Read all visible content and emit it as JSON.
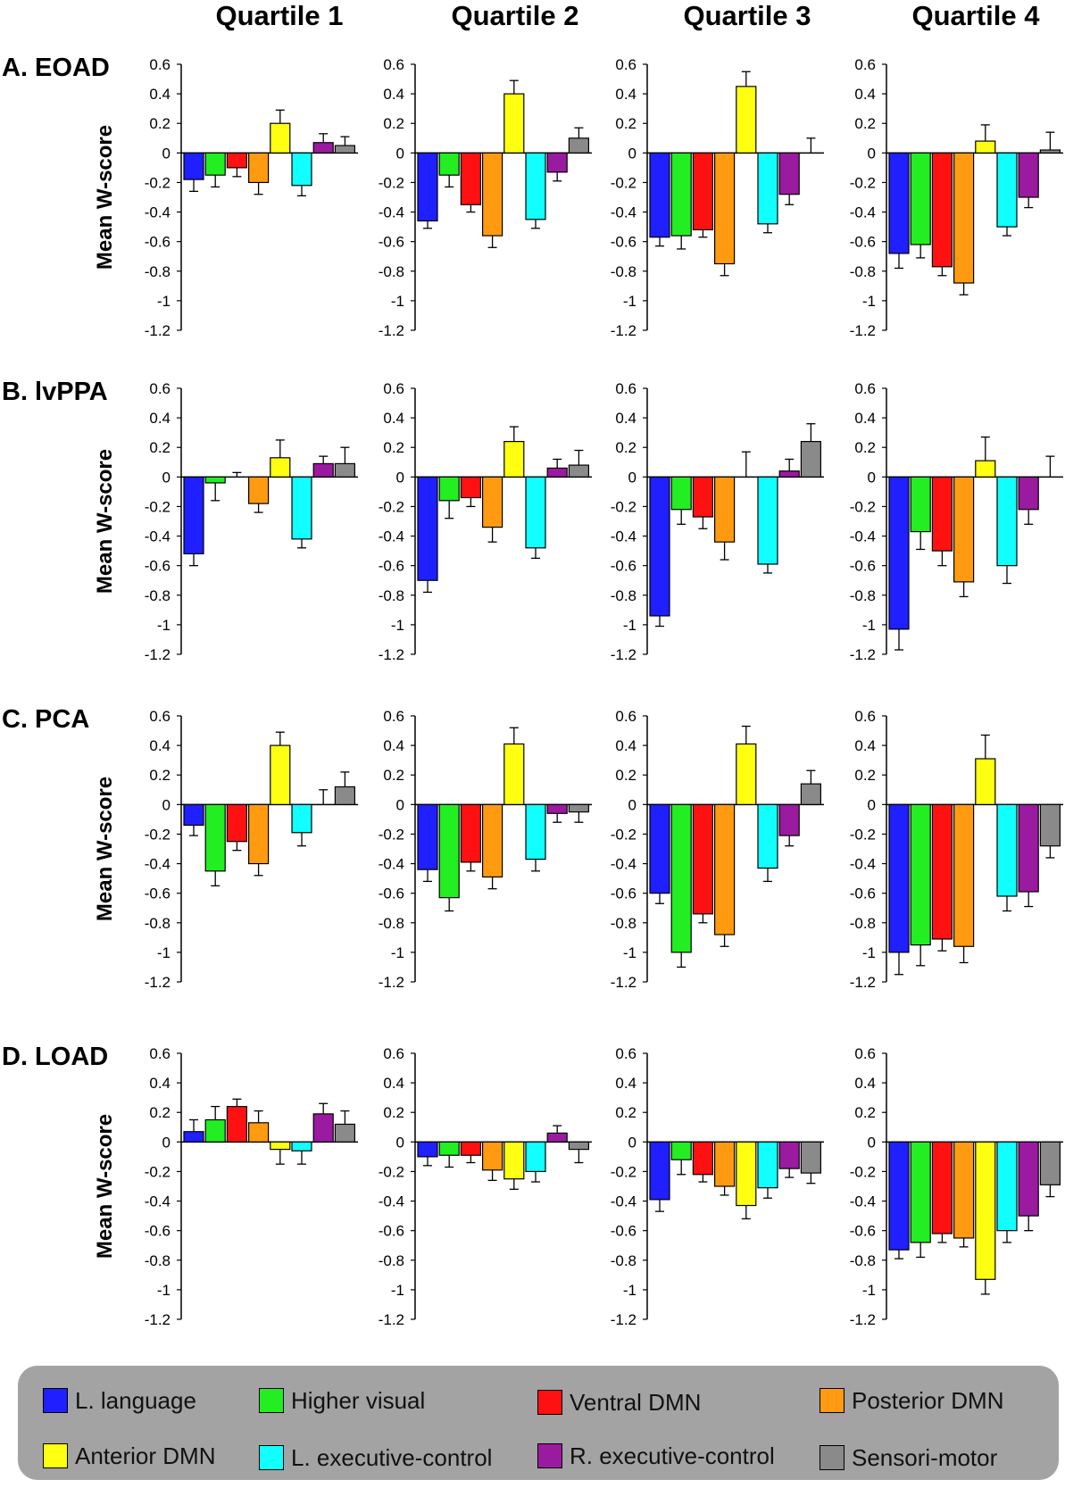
{
  "chart_data": {
    "type": "bar",
    "ylabel": "Mean W-score",
    "ylim": [
      -1.2,
      0.6
    ],
    "yticks": [
      "0.6",
      "0.4",
      "0.2",
      "0",
      "-0.2",
      "-0.4",
      "-0.6",
      "-0.8",
      "-1",
      "-1.2"
    ],
    "columns": [
      "Quartile 1",
      "Quartile 2",
      "Quartile 3",
      "Quartile 4"
    ],
    "rows": [
      "A. EOAD",
      "B. lvPPA",
      "C. PCA",
      "D. LOAD"
    ],
    "series": [
      {
        "name": "L. language",
        "color": "#1f1fff"
      },
      {
        "name": "Higher visual",
        "color": "#22ee22"
      },
      {
        "name": "Ventral DMN",
        "color": "#ff1111"
      },
      {
        "name": "Posterior DMN",
        "color": "#ff9a11"
      },
      {
        "name": "Anterior DMN",
        "color": "#ffff11"
      },
      {
        "name": "L. executive-control",
        "color": "#11ffff"
      },
      {
        "name": "R. executive-control",
        "color": "#9a1aa0"
      },
      {
        "name": "Sensori-motor",
        "color": "#8a8a8a"
      }
    ],
    "values": [
      [
        [
          -0.18,
          -0.15,
          -0.1,
          -0.2,
          0.2,
          -0.22,
          0.07,
          0.05
        ],
        [
          -0.46,
          -0.15,
          -0.35,
          -0.56,
          0.4,
          -0.45,
          -0.13,
          0.1
        ],
        [
          -0.57,
          -0.56,
          -0.52,
          -0.75,
          0.45,
          -0.48,
          -0.28,
          0.0
        ],
        [
          -0.68,
          -0.62,
          -0.77,
          -0.88,
          0.08,
          -0.5,
          -0.3,
          0.02
        ]
      ],
      [
        [
          -0.52,
          -0.04,
          0.0,
          -0.18,
          0.13,
          -0.42,
          0.09,
          0.09
        ],
        [
          -0.7,
          -0.16,
          -0.14,
          -0.34,
          0.24,
          -0.48,
          0.06,
          0.08
        ],
        [
          -0.94,
          -0.22,
          -0.27,
          -0.44,
          0.0,
          -0.59,
          0.04,
          0.24
        ],
        [
          -1.03,
          -0.37,
          -0.5,
          -0.71,
          0.11,
          -0.6,
          -0.22,
          0.0
        ]
      ],
      [
        [
          -0.14,
          -0.45,
          -0.25,
          -0.4,
          0.4,
          -0.19,
          0.0,
          0.12
        ],
        [
          -0.44,
          -0.63,
          -0.39,
          -0.49,
          0.41,
          -0.37,
          -0.06,
          -0.05
        ],
        [
          -0.6,
          -1.0,
          -0.74,
          -0.88,
          0.41,
          -0.43,
          -0.21,
          0.14
        ],
        [
          -1.0,
          -0.95,
          -0.91,
          -0.96,
          0.31,
          -0.62,
          -0.59,
          -0.28
        ]
      ],
      [
        [
          0.07,
          0.15,
          0.24,
          0.13,
          -0.05,
          -0.06,
          0.19,
          0.12
        ],
        [
          -0.1,
          -0.09,
          -0.09,
          -0.19,
          -0.25,
          -0.2,
          0.06,
          -0.05
        ],
        [
          -0.39,
          -0.12,
          -0.22,
          -0.3,
          -0.43,
          -0.31,
          -0.18,
          -0.21
        ],
        [
          -0.73,
          -0.68,
          -0.62,
          -0.65,
          -0.93,
          -0.6,
          -0.5,
          -0.29
        ]
      ]
    ],
    "errors": [
      [
        [
          0.08,
          0.08,
          0.06,
          0.08,
          0.09,
          0.07,
          0.06,
          0.06
        ],
        [
          0.05,
          0.08,
          0.05,
          0.08,
          0.09,
          0.06,
          0.06,
          0.07
        ],
        [
          0.06,
          0.09,
          0.05,
          0.08,
          0.1,
          0.06,
          0.07,
          0.1
        ],
        [
          0.1,
          0.09,
          0.06,
          0.08,
          0.11,
          0.06,
          0.07,
          0.12
        ]
      ],
      [
        [
          0.08,
          0.12,
          0.03,
          0.06,
          0.12,
          0.06,
          0.05,
          0.11
        ],
        [
          0.08,
          0.12,
          0.06,
          0.1,
          0.1,
          0.07,
          0.06,
          0.1
        ],
        [
          0.07,
          0.1,
          0.08,
          0.12,
          0.17,
          0.06,
          0.08,
          0.12
        ],
        [
          0.14,
          0.12,
          0.1,
          0.1,
          0.16,
          0.12,
          0.1,
          0.14
        ]
      ],
      [
        [
          0.07,
          0.1,
          0.06,
          0.08,
          0.09,
          0.09,
          0.1,
          0.1
        ],
        [
          0.08,
          0.09,
          0.06,
          0.08,
          0.11,
          0.08,
          0.06,
          0.07
        ],
        [
          0.07,
          0.1,
          0.06,
          0.08,
          0.12,
          0.09,
          0.07,
          0.09
        ],
        [
          0.15,
          0.14,
          0.08,
          0.11,
          0.16,
          0.1,
          0.1,
          0.08
        ]
      ],
      [
        [
          0.08,
          0.09,
          0.05,
          0.08,
          0.1,
          0.09,
          0.07,
          0.09
        ],
        [
          0.06,
          0.08,
          0.05,
          0.07,
          0.07,
          0.07,
          0.05,
          0.09
        ],
        [
          0.08,
          0.1,
          0.05,
          0.06,
          0.09,
          0.07,
          0.06,
          0.07
        ],
        [
          0.06,
          0.1,
          0.06,
          0.06,
          0.1,
          0.08,
          0.1,
          0.08
        ]
      ]
    ]
  }
}
